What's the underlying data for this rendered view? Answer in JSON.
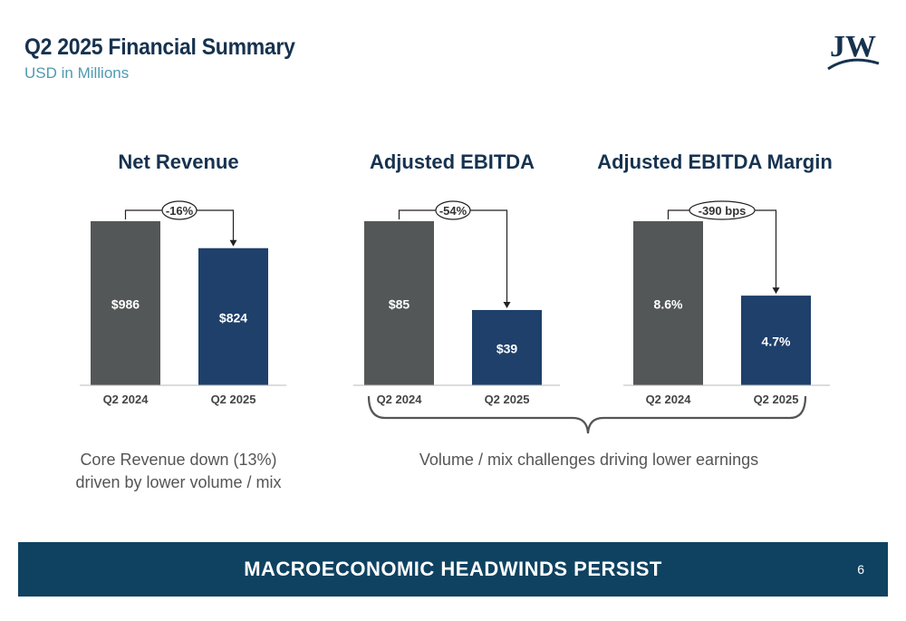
{
  "header": {
    "title": "Q2 2025 Financial Summary",
    "subtitle": "USD in Millions",
    "logo_text": "JW"
  },
  "colors": {
    "prior_bar": "#545757",
    "current_bar": "#1e406a",
    "title": "#16324f",
    "subtitle": "#4f9ab0",
    "banner": "#0f4261"
  },
  "chart_data": [
    {
      "type": "bar",
      "title": "Net Revenue",
      "categories": [
        "Q2 2024",
        "Q2 2025"
      ],
      "values": [
        986,
        824
      ],
      "labels": [
        "$986",
        "$824"
      ],
      "change_label": "-16%"
    },
    {
      "type": "bar",
      "title": "Adjusted EBITDA",
      "categories": [
        "Q2 2024",
        "Q2 2025"
      ],
      "values": [
        85,
        39
      ],
      "labels": [
        "$85",
        "$39"
      ],
      "change_label": "-54%"
    },
    {
      "type": "bar",
      "title": "Adjusted EBITDA Margin",
      "categories": [
        "Q2 2024",
        "Q2 2025"
      ],
      "values": [
        8.6,
        4.7
      ],
      "labels": [
        "8.6%",
        "4.7%"
      ],
      "change_label": "-390 bps"
    }
  ],
  "notes": {
    "left": "Core Revenue down (13%) driven by lower volume / mix",
    "right": "Volume / mix challenges driving lower earnings"
  },
  "banner": {
    "text": "MACROECONOMIC HEADWINDS PERSIST",
    "page_number": "6"
  }
}
